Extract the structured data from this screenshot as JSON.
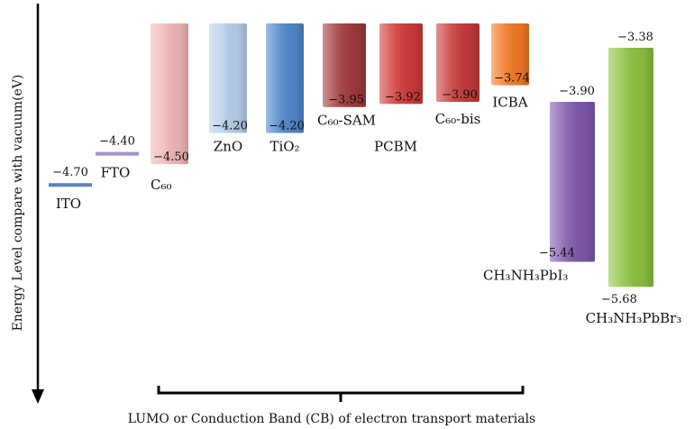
{
  "chart_data": {
    "type": "bar",
    "title": "",
    "xlabel": "LUMO or Conduction Band (CB) of electron transport materials",
    "ylabel": "Energy Level compare with vacuum(eV)",
    "y_direction": "down",
    "colors": {
      "ITO": "#5b82c4",
      "FTO": "#a493c8",
      "C60": "#f2b8b8",
      "ZnO": "#b8d0ec",
      "TiO2": "#4f87cc",
      "C60-SAM": "#a13a3a",
      "PCBM": "#d23a3a",
      "C60-bis": "#c73a3a",
      "ICBA": "#f27a24",
      "CH3NH3PbI3": "#8059ad",
      "CH3NH3PbBr3": "#8dc23f"
    },
    "items": [
      {
        "name": "ITO",
        "kind": "line",
        "level": -4.7,
        "label": "−4.70"
      },
      {
        "name": "FTO",
        "kind": "line",
        "level": -4.4,
        "label": "−4.40"
      },
      {
        "name": "C60",
        "display": "C₆₀",
        "kind": "bar",
        "lumo": -4.5,
        "label": "−4.50"
      },
      {
        "name": "ZnO",
        "kind": "bar",
        "lumo": -4.2,
        "label": "−4.20"
      },
      {
        "name": "TiO2",
        "display": "TiO₂",
        "kind": "bar",
        "lumo": -4.2,
        "label": "−4.20"
      },
      {
        "name": "C60-SAM",
        "display": "C₆₀-SAM",
        "kind": "bar",
        "lumo": -3.95,
        "label": "−3.95"
      },
      {
        "name": "PCBM",
        "kind": "bar",
        "lumo": -3.92,
        "label": "−3.92"
      },
      {
        "name": "C60-bis",
        "display": "C₆₀-bis",
        "kind": "bar",
        "lumo": -3.9,
        "label": "−3.90"
      },
      {
        "name": "ICBA",
        "kind": "bar",
        "lumo": -3.74,
        "label": "−3.74"
      },
      {
        "name": "CH3NH3PbI3",
        "display": "CH₃NH₃PbI₃",
        "kind": "range",
        "cb": -3.9,
        "vb": -5.44,
        "cb_label": "−3.90",
        "vb_label": "−5.44"
      },
      {
        "name": "CH3NH3PbBr3",
        "display": "CH₃NH₃PbBr₃",
        "kind": "range",
        "cb": -3.38,
        "vb": -5.68,
        "cb_label": "−3.38",
        "vb_label": "−5.68"
      }
    ]
  }
}
